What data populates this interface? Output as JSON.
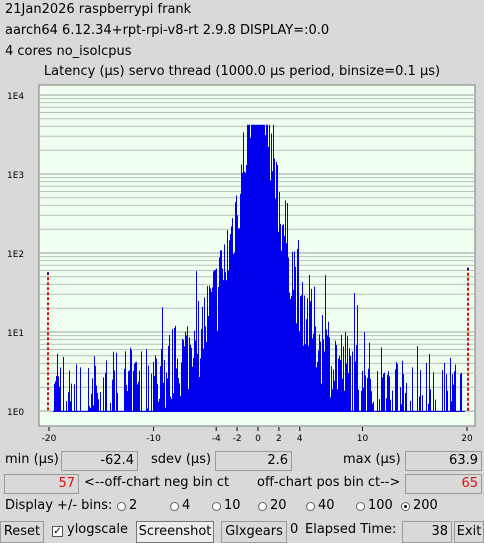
{
  "header": {
    "line1": "21Jan2026 raspberrypi frank",
    "line2": "aarch64  6.12.34+rpt-rpi-v8-rt  2.9.8  DISPLAY=:0.0",
    "line3": "4 cores  no_isolcpus"
  },
  "chart_data": {
    "type": "bar",
    "title": "Latency (µs) servo thread (1000.0 µs period, binsize=0.1 µs)",
    "xlim": [
      -20,
      20
    ],
    "yscale": "log",
    "ytick_labels": [
      "1E4",
      "1E3",
      "1E2",
      "1E1",
      "1E0"
    ],
    "xtick_labels": [
      "-20",
      "-10",
      "-4",
      "-2",
      "0",
      "2",
      "4",
      "10",
      "20"
    ],
    "grid": true,
    "bar_color": "#0000ee",
    "marker_color": "#e01010",
    "peak_count": 4200,
    "offchart_neg_count": 57,
    "offchart_pos_count": 65
  },
  "stats": {
    "min_label": "min (µs)",
    "min_value": "-62.4",
    "sdev_label": "sdev (µs)",
    "sdev_value": "2.6",
    "max_label": "max (µs)",
    "max_value": "63.9",
    "neg_count": "57",
    "neg_label": "<--off-chart neg bin ct",
    "pos_label": "off-chart pos bin ct-->",
    "pos_count": "65"
  },
  "bins": {
    "label": "Display +/- bins:",
    "options": [
      "2",
      "4",
      "10",
      "20",
      "40",
      "100",
      "200"
    ],
    "selected": "200"
  },
  "footer": {
    "reset_label": "Reset",
    "ylogscale_label": "ylogscale",
    "ylogscale_checked": true,
    "screenshot_label": "Screenshot",
    "glxgears_label": "Glxgears",
    "glxgears_value": "0",
    "elapsed_label": "Elapsed Time:",
    "elapsed_value": "38",
    "exit_label": "Exit"
  }
}
